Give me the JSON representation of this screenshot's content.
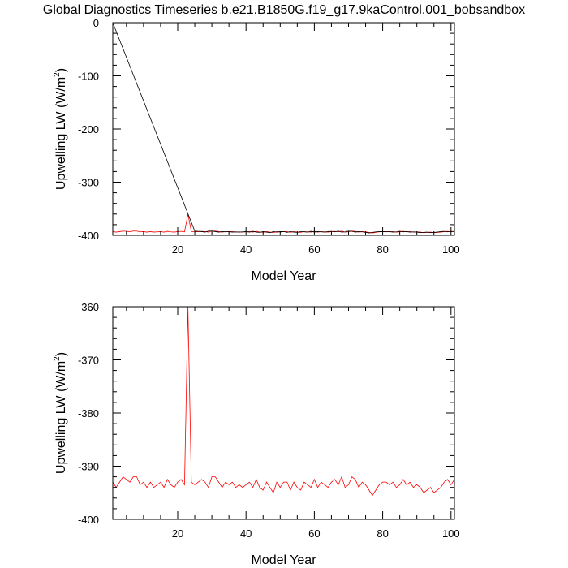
{
  "figure": {
    "title": "Global Diagnostics Timeseries b.e21.B1850G.f19_g17.9kaControl.001_bobsandbox"
  },
  "chart_data": [
    {
      "type": "line",
      "xlabel": "Model Year",
      "ylabel_main": "Upwelling LW (W/m",
      "ylabel_sup": "2",
      "ylabel_close": ")",
      "xlim": [
        1,
        101
      ],
      "ylim": [
        -400,
        0
      ],
      "xticks": [
        20,
        40,
        60,
        80,
        100
      ],
      "yticks": [
        0,
        -100,
        -200,
        -300,
        -400
      ],
      "series": [
        {
          "color": "#ff0000",
          "x": [
            1,
            2,
            3,
            4,
            5,
            6,
            7,
            8,
            9,
            10,
            11,
            12,
            13,
            14,
            15,
            16,
            17,
            18,
            19,
            20,
            21,
            22,
            23,
            24,
            25,
            26,
            27,
            28,
            29,
            30,
            31,
            32,
            33,
            34,
            35,
            36,
            37,
            38,
            39,
            40,
            41,
            42,
            43,
            44,
            45,
            46,
            47,
            48,
            49,
            50,
            51,
            52,
            53,
            54,
            55,
            56,
            57,
            58,
            59,
            60,
            61,
            62,
            63,
            64,
            65,
            66,
            67,
            68,
            69,
            70,
            71,
            72,
            73,
            74,
            75,
            76,
            77,
            78,
            79,
            80,
            81,
            82,
            83,
            84,
            85,
            86,
            87,
            88,
            89,
            90,
            91,
            92,
            93,
            94,
            95,
            96,
            97,
            98,
            99,
            100,
            101
          ],
          "y": [
            -393,
            -394,
            -393,
            -392,
            -392.5,
            -393,
            -392,
            -392,
            -393.5,
            -393,
            -394,
            -393,
            -394,
            -393.5,
            -393,
            -394,
            -392.5,
            -393.5,
            -394,
            -393,
            -392.5,
            -393.5,
            -360,
            -393,
            -393.5,
            -393,
            -392.5,
            -393,
            -394,
            -392,
            -392,
            -393,
            -394,
            -393,
            -393.5,
            -393,
            -394,
            -393.5,
            -394,
            -393.5,
            -393,
            -394,
            -392.5,
            -394,
            -394.5,
            -393,
            -394,
            -395,
            -393,
            -394,
            -393,
            -393,
            -394.5,
            -393,
            -394,
            -394.5,
            -393,
            -393.5,
            -394,
            -392.5,
            -394,
            -393,
            -393.5,
            -394,
            -393,
            -392.5,
            -393.5,
            -392,
            -394,
            -393.5,
            -392,
            -392.5,
            -394,
            -393,
            -393.5,
            -394.5,
            -395.5,
            -394.5,
            -393.5,
            -393,
            -393,
            -393.5,
            -393,
            -394,
            -393.5,
            -392.5,
            -393.5,
            -393,
            -394,
            -393.5,
            -394,
            -395,
            -394.5,
            -394,
            -395,
            -394.5,
            -394,
            -393,
            -392.5,
            -393.5,
            -392.5
          ]
        },
        {
          "color": "#000000",
          "x": [
            1,
            25,
            26,
            27,
            28,
            29,
            30,
            31,
            32,
            33,
            34,
            35,
            36,
            37,
            38,
            39,
            40,
            41,
            42,
            43,
            44,
            45,
            46,
            47,
            48,
            49,
            50,
            51,
            52,
            53,
            54,
            55,
            56,
            57,
            58,
            59,
            60,
            61,
            62,
            63,
            64,
            65,
            66,
            67,
            68,
            69,
            70,
            71,
            72,
            73,
            74,
            75,
            76,
            77,
            78,
            79,
            80,
            81,
            82,
            83,
            84,
            85,
            86,
            87,
            88,
            89,
            90,
            91,
            92,
            93,
            94,
            95,
            96,
            97,
            98,
            99,
            100,
            101
          ],
          "y": [
            0,
            -392,
            -392.5,
            -393,
            -394,
            -392,
            -392,
            -393,
            -394,
            -393,
            -393.5,
            -393,
            -394,
            -393.5,
            -394,
            -393.5,
            -393,
            -394,
            -392.5,
            -394,
            -394.5,
            -393,
            -394,
            -395,
            -393,
            -394,
            -393,
            -393,
            -394.5,
            -393,
            -394,
            -394.5,
            -393,
            -393.5,
            -394,
            -392.5,
            -394,
            -393,
            -393.5,
            -394,
            -393,
            -392.5,
            -393.5,
            -392,
            -394,
            -393.5,
            -392,
            -392.5,
            -394,
            -393,
            -393.5,
            -394.5,
            -395.5,
            -394.5,
            -393.5,
            -393,
            -393,
            -393.5,
            -393,
            -394,
            -393.5,
            -392.5,
            -393.5,
            -393,
            -394,
            -393.5,
            -394,
            -395,
            -394.5,
            -394,
            -395,
            -394.5,
            -394,
            -393,
            -392.5,
            -393.5,
            -392.5,
            -393
          ]
        }
      ]
    },
    {
      "type": "line",
      "xlabel": "Model Year",
      "ylabel_main": "Upwelling LW (W/m",
      "ylabel_sup": "2",
      "ylabel_close": ")",
      "xlim": [
        1,
        101
      ],
      "ylim": [
        -400,
        -360
      ],
      "xticks": [
        20,
        40,
        60,
        80,
        100
      ],
      "yticks": [
        -360,
        -370,
        -380,
        -390,
        -400
      ],
      "series": [
        {
          "color": "#ff0000",
          "x": [
            1,
            2,
            3,
            4,
            5,
            6,
            7,
            8,
            9,
            10,
            11,
            12,
            13,
            14,
            15,
            16,
            17,
            18,
            19,
            20,
            21,
            22,
            23,
            24,
            25,
            26,
            27,
            28,
            29,
            30,
            31,
            32,
            33,
            34,
            35,
            36,
            37,
            38,
            39,
            40,
            41,
            42,
            43,
            44,
            45,
            46,
            47,
            48,
            49,
            50,
            51,
            52,
            53,
            54,
            55,
            56,
            57,
            58,
            59,
            60,
            61,
            62,
            63,
            64,
            65,
            66,
            67,
            68,
            69,
            70,
            71,
            72,
            73,
            74,
            75,
            76,
            77,
            78,
            79,
            80,
            81,
            82,
            83,
            84,
            85,
            86,
            87,
            88,
            89,
            90,
            91,
            92,
            93,
            94,
            95,
            96,
            97,
            98,
            99,
            100,
            101
          ],
          "y": [
            -393,
            -394,
            -393,
            -392,
            -392.5,
            -393,
            -392,
            -392,
            -393.5,
            -393,
            -394,
            -393,
            -394,
            -393.5,
            -393,
            -394,
            -392.5,
            -393.5,
            -394,
            -393,
            -392.5,
            -393.5,
            -360,
            -393,
            -393.5,
            -393,
            -392.5,
            -393,
            -394,
            -392,
            -392,
            -393,
            -394,
            -393,
            -393.5,
            -393,
            -394,
            -393.5,
            -394,
            -393.5,
            -393,
            -394,
            -392.5,
            -394,
            -394.5,
            -393,
            -394,
            -395,
            -393,
            -394,
            -393,
            -393,
            -394.5,
            -393,
            -394,
            -394.5,
            -393,
            -393.5,
            -394,
            -392.5,
            -394,
            -393,
            -393.5,
            -394,
            -393,
            -392.5,
            -393.5,
            -392,
            -394,
            -393.5,
            -392,
            -392.5,
            -394,
            -393,
            -393.5,
            -394.5,
            -395.5,
            -394.5,
            -393.5,
            -393,
            -393,
            -393.5,
            -393,
            -394,
            -393.5,
            -392.5,
            -393.5,
            -393,
            -394,
            -393.5,
            -394,
            -395,
            -394.5,
            -394,
            -395,
            -394.5,
            -394,
            -393,
            -392.5,
            -393.5,
            -392.5
          ]
        }
      ]
    }
  ]
}
